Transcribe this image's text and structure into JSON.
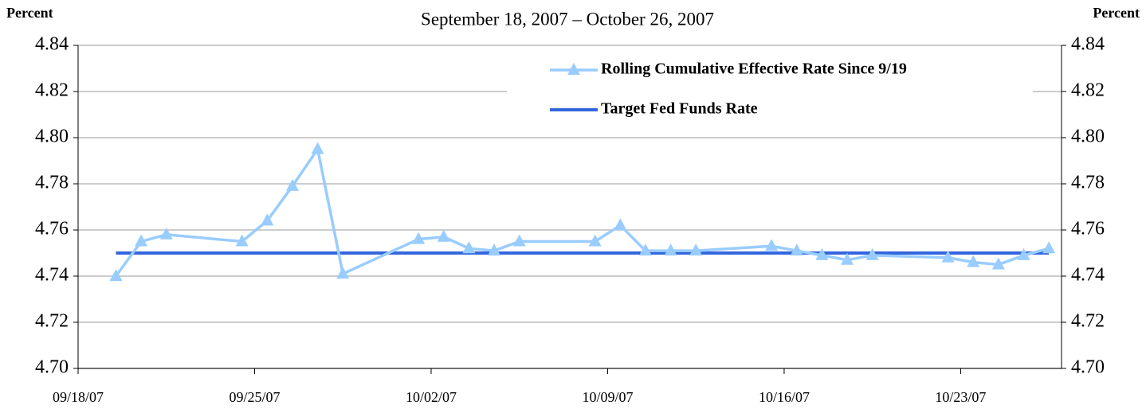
{
  "chart_data": {
    "type": "line",
    "subtitle": "September 18, 2007 – October 26, 2007",
    "y_label": "Percent",
    "y2_label": "Percent",
    "x": [
      "09/19/07",
      "09/20/07",
      "09/21/07",
      "09/24/07",
      "09/25/07",
      "09/26/07",
      "09/27/07",
      "09/28/07",
      "10/01/07",
      "10/02/07",
      "10/03/07",
      "10/04/07",
      "10/05/07",
      "10/08/07",
      "10/09/07",
      "10/10/07",
      "10/11/07",
      "10/12/07",
      "10/15/07",
      "10/16/07",
      "10/17/07",
      "10/18/07",
      "10/19/07",
      "10/22/07",
      "10/23/07",
      "10/24/07",
      "10/25/07",
      "10/26/07"
    ],
    "series": [
      {
        "name": "Rolling Cumulative Effective Rate Since 9/19",
        "color": "#99ccff",
        "marker": "triangle",
        "values": [
          4.74,
          4.755,
          4.758,
          4.755,
          4.764,
          4.779,
          4.795,
          4.741,
          4.756,
          4.757,
          4.752,
          4.751,
          4.755,
          4.755,
          4.762,
          4.751,
          4.751,
          4.751,
          4.753,
          4.751,
          4.749,
          4.747,
          4.749,
          4.748,
          4.746,
          4.745,
          4.749,
          4.752
        ]
      },
      {
        "name": "Target Fed Funds Rate",
        "color": "#3366dd",
        "values": [
          4.75,
          4.75,
          4.75,
          4.75,
          4.75,
          4.75,
          4.75,
          4.75,
          4.75,
          4.75,
          4.75,
          4.75,
          4.75,
          4.75,
          4.75,
          4.75,
          4.75,
          4.75,
          4.75,
          4.75,
          4.75,
          4.75,
          4.75,
          4.75,
          4.75,
          4.75,
          4.75,
          4.75
        ]
      }
    ],
    "xlim": [
      "09/18/07",
      "10/27/07"
    ],
    "xticks": [
      "09/18/07",
      "09/25/07",
      "10/02/07",
      "10/09/07",
      "10/16/07",
      "10/23/07"
    ],
    "ylim": [
      4.7,
      4.84
    ],
    "yticks": [
      {
        "value": 4.7,
        "label": "4.70"
      },
      4.72,
      4.74,
      4.76,
      4.78,
      {
        "value": 4.8,
        "label": "4.80"
      },
      4.82,
      4.84
    ],
    "y2lim": [
      4.7,
      4.84
    ],
    "y2ticks": [
      {
        "value": 4.7,
        "label": "4.70"
      },
      4.72,
      4.74,
      4.76,
      4.78,
      {
        "value": 4.8,
        "label": "4.80"
      },
      4.82,
      4.84
    ],
    "grid": true,
    "legend": "top-right"
  }
}
